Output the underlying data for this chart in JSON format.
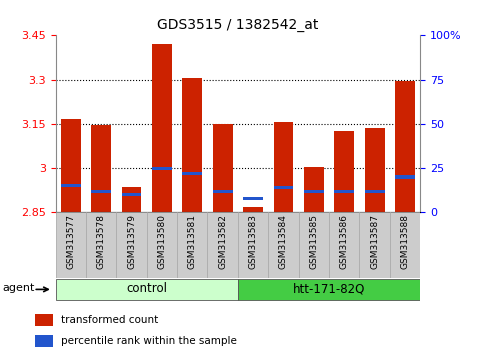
{
  "title": "GDS3515 / 1382542_at",
  "samples": [
    "GSM313577",
    "GSM313578",
    "GSM313579",
    "GSM313580",
    "GSM313581",
    "GSM313582",
    "GSM313583",
    "GSM313584",
    "GSM313585",
    "GSM313586",
    "GSM313587",
    "GSM313588"
  ],
  "transformed_counts": [
    3.165,
    3.145,
    2.935,
    3.42,
    3.305,
    3.15,
    2.87,
    3.155,
    3.005,
    3.125,
    3.135,
    3.295
  ],
  "percentile_ranks": [
    15,
    12,
    10,
    25,
    22,
    12,
    8,
    14,
    12,
    12,
    12,
    20
  ],
  "ymin": 2.85,
  "ymax": 3.45,
  "yticks": [
    2.85,
    3.0,
    3.15,
    3.3,
    3.45
  ],
  "ytick_labels": [
    "2.85",
    "3",
    "3.15",
    "3.3",
    "3.45"
  ],
  "right_yticks": [
    0,
    25,
    50,
    75,
    100
  ],
  "right_ytick_labels": [
    "0",
    "25",
    "50",
    "75",
    "100%"
  ],
  "bar_color": "#cc2200",
  "blue_color": "#2255cc",
  "control_color": "#ccffcc",
  "htt_color": "#44cc44",
  "control_label": "control",
  "htt_label": "htt-171-82Q",
  "agent_label": "agent",
  "legend_red": "transformed count",
  "legend_blue": "percentile rank within the sample",
  "grid_dotted_at": [
    3.0,
    3.15,
    3.3
  ],
  "bar_width": 0.65
}
